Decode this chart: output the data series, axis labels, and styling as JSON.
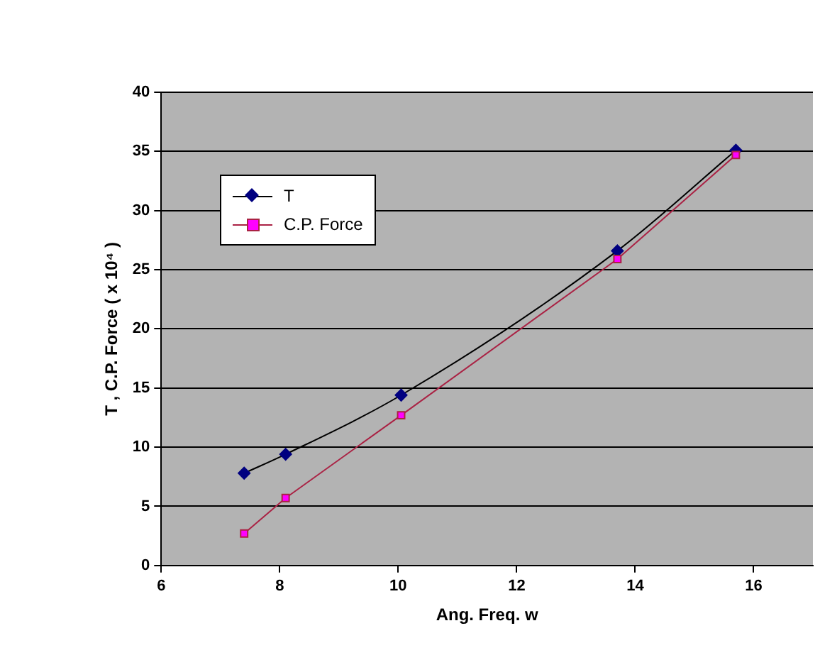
{
  "chart_data": {
    "type": "line",
    "xlabel": "Ang. Freq. w",
    "ylabel": "T , C.P. Force ( x 10⁴ )",
    "xlim": [
      6,
      17
    ],
    "xticks": [
      6,
      8,
      10,
      12,
      14,
      16
    ],
    "ylim": [
      0,
      40
    ],
    "yticks": [
      0,
      5,
      10,
      15,
      20,
      25,
      30,
      35,
      40
    ],
    "grid": "y",
    "legend": "top left",
    "series": [
      {
        "name": "T",
        "color": "#000080",
        "marker": "diamond",
        "x": [
          7.4,
          8.1,
          10.05,
          13.7,
          15.7
        ],
        "values": [
          7.8,
          9.4,
          14.4,
          26.6,
          35.1
        ]
      },
      {
        "name": "C.P. Force",
        "color": "#ff00ff",
        "marker": "square",
        "x": [
          7.4,
          8.1,
          10.05,
          13.7,
          15.7
        ],
        "values": [
          2.7,
          5.7,
          12.7,
          25.9,
          34.7
        ]
      }
    ]
  }
}
